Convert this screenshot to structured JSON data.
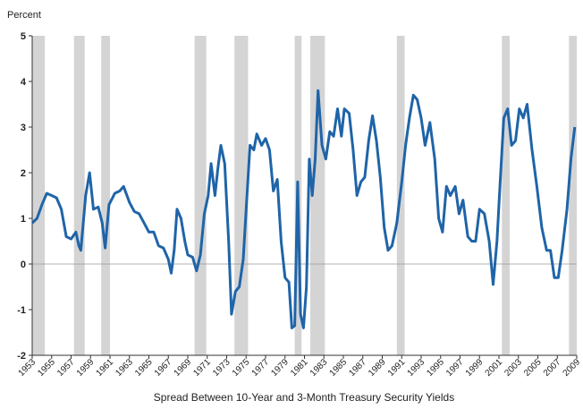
{
  "chart_data": {
    "type": "line",
    "y_label": "Percent",
    "x_label": "Spread Between 10-Year and 3-Month Treasury Security Yields",
    "color": "#1f64a8",
    "xlim": [
      1953,
      2009
    ],
    "ylim": [
      -2,
      5
    ],
    "yticks": [
      -2,
      -1,
      0,
      1,
      2,
      3,
      4,
      5
    ],
    "xticks": [
      1953,
      1955,
      1957,
      1959,
      1961,
      1963,
      1965,
      1967,
      1969,
      1971,
      1973,
      1975,
      1977,
      1979,
      1981,
      1983,
      1985,
      1987,
      1989,
      1991,
      1993,
      1995,
      1997,
      1999,
      2001,
      2003,
      2005,
      2007,
      2009
    ],
    "hline": 0,
    "recessions": [
      [
        1953.0,
        1954.3
      ],
      [
        1957.3,
        1958.4
      ],
      [
        1960.1,
        1961.0
      ],
      [
        1969.7,
        1970.9
      ],
      [
        1973.8,
        1975.2
      ],
      [
        1980.0,
        1980.7
      ],
      [
        1981.6,
        1983.1
      ],
      [
        1990.5,
        1991.3
      ],
      [
        2001.3,
        2002.1
      ],
      [
        2008.2,
        2009.0
      ]
    ],
    "x": [
      1953.0,
      1953.5,
      1954.0,
      1954.5,
      1955.0,
      1955.5,
      1956.0,
      1956.5,
      1957.0,
      1957.5,
      1957.8,
      1958.0,
      1958.5,
      1958.9,
      1959.3,
      1959.8,
      1960.2,
      1960.5,
      1960.9,
      1961.5,
      1962.0,
      1962.4,
      1963.0,
      1963.5,
      1964.0,
      1964.5,
      1965.0,
      1965.5,
      1966.0,
      1966.5,
      1967.0,
      1967.3,
      1967.6,
      1967.9,
      1968.3,
      1968.7,
      1969.0,
      1969.5,
      1969.9,
      1970.3,
      1970.7,
      1971.1,
      1971.4,
      1971.8,
      1972.1,
      1972.4,
      1972.8,
      1973.2,
      1973.5,
      1973.9,
      1974.3,
      1974.7,
      1975.0,
      1975.4,
      1975.8,
      1976.1,
      1976.6,
      1977.0,
      1977.4,
      1977.8,
      1978.2,
      1978.6,
      1979.0,
      1979.4,
      1979.7,
      1980.0,
      1980.3,
      1980.6,
      1980.9,
      1981.2,
      1981.5,
      1981.8,
      1982.1,
      1982.4,
      1982.8,
      1983.2,
      1983.6,
      1984.0,
      1984.4,
      1984.8,
      1985.1,
      1985.6,
      1986.0,
      1986.4,
      1986.8,
      1987.2,
      1987.6,
      1988.0,
      1988.4,
      1988.8,
      1989.2,
      1989.6,
      1990.0,
      1990.5,
      1991.0,
      1991.4,
      1991.8,
      1992.2,
      1992.6,
      1993.0,
      1993.4,
      1993.9,
      1994.4,
      1994.8,
      1995.2,
      1995.6,
      1996.0,
      1996.5,
      1996.9,
      1997.3,
      1997.8,
      1998.2,
      1998.6,
      1999.0,
      1999.5,
      2000.0,
      2000.4,
      2000.8,
      2001.1,
      2001.5,
      2001.9,
      2002.3,
      2002.7,
      2003.1,
      2003.5,
      2003.9,
      2004.4,
      2004.9,
      2005.4,
      2005.9,
      2006.3,
      2006.7,
      2007.1,
      2007.5,
      2008.0,
      2008.4,
      2008.8
    ],
    "values": [
      0.9,
      1.0,
      1.3,
      1.55,
      1.5,
      1.45,
      1.2,
      0.6,
      0.55,
      0.7,
      0.4,
      0.3,
      1.5,
      2.0,
      1.2,
      1.25,
      0.9,
      0.35,
      1.3,
      1.55,
      1.6,
      1.7,
      1.35,
      1.15,
      1.1,
      0.9,
      0.7,
      0.7,
      0.4,
      0.35,
      0.1,
      -0.2,
      0.3,
      1.2,
      1.0,
      0.5,
      0.2,
      0.15,
      -0.15,
      0.2,
      1.1,
      1.5,
      2.2,
      1.5,
      2.1,
      2.6,
      2.2,
      0.5,
      -1.1,
      -0.6,
      -0.5,
      0.1,
      1.2,
      2.6,
      2.5,
      2.85,
      2.6,
      2.75,
      2.5,
      1.6,
      1.85,
      0.5,
      -0.3,
      -0.4,
      -1.4,
      -1.35,
      1.8,
      -1.1,
      -1.4,
      -0.5,
      2.3,
      1.5,
      2.3,
      3.8,
      2.6,
      2.3,
      2.9,
      2.8,
      3.4,
      2.8,
      3.4,
      3.3,
      2.5,
      1.5,
      1.8,
      1.9,
      2.7,
      3.25,
      2.7,
      1.9,
      0.8,
      0.3,
      0.4,
      0.9,
      1.8,
      2.6,
      3.2,
      3.7,
      3.6,
      3.2,
      2.6,
      3.1,
      2.3,
      1.0,
      0.7,
      1.7,
      1.5,
      1.7,
      1.1,
      1.4,
      0.6,
      0.5,
      0.5,
      1.2,
      1.1,
      0.5,
      -0.45,
      0.5,
      1.7,
      3.2,
      3.4,
      2.6,
      2.7,
      3.4,
      3.2,
      3.5,
      2.5,
      1.7,
      0.8,
      0.3,
      0.3,
      -0.3,
      -0.3,
      0.3,
      1.2,
      2.3,
      3.0
    ]
  }
}
